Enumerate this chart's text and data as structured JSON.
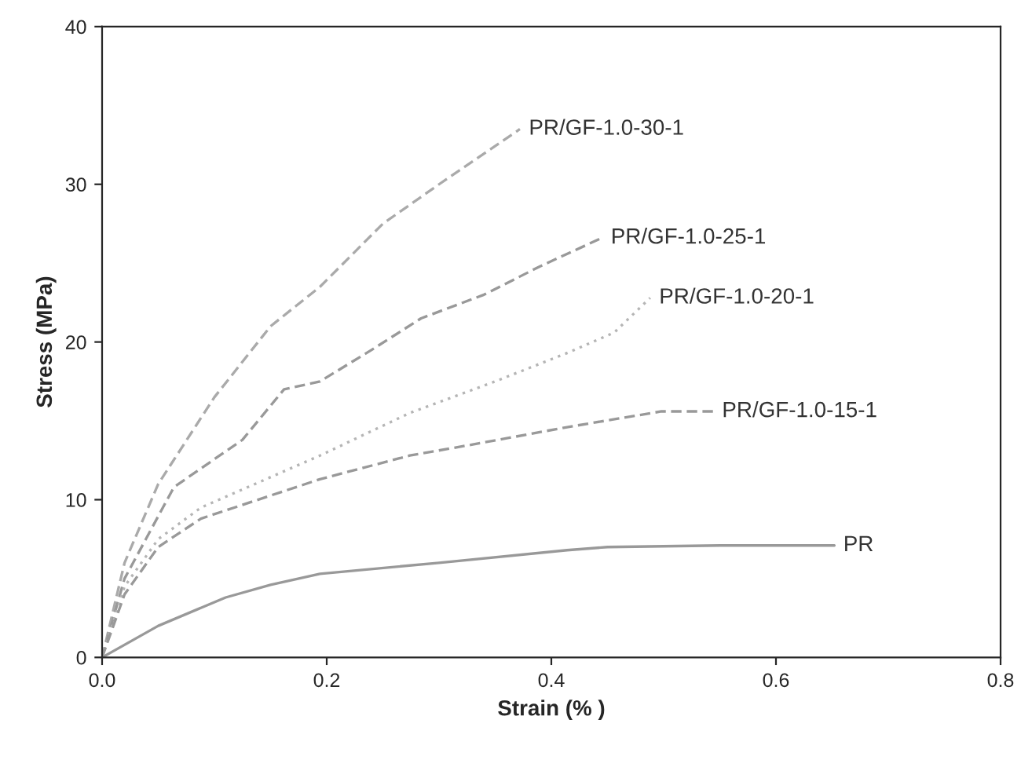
{
  "chart_data": {
    "type": "line",
    "xlabel": "Strain (% )",
    "ylabel": "Stress (MPa)",
    "xlim": [
      0,
      0.8
    ],
    "ylim": [
      0,
      40
    ],
    "xticks": [
      {
        "value": 0,
        "label": "0.0"
      },
      {
        "value": 0.2,
        "label": "0.2"
      },
      {
        "value": 0.4,
        "label": "0.4"
      },
      {
        "value": 0.6,
        "label": "0.6"
      },
      {
        "value": 0.8,
        "label": "0.8"
      }
    ],
    "yticks": [
      0,
      10,
      20,
      30,
      40
    ],
    "grid": false,
    "legend": false,
    "series": [
      {
        "name": "PR/GF-1.0-30-1",
        "color": "#aaaaaa",
        "line_style": "dashed",
        "x": [
          0,
          0.02,
          0.05,
          0.1,
          0.15,
          0.194,
          0.25,
          0.3,
          0.372
        ],
        "values": [
          0,
          6,
          11,
          16.5,
          21,
          23.5,
          27.5,
          30,
          33.5
        ]
      },
      {
        "name": "PR/GF-1.0-25-1",
        "color": "#999999",
        "line_style": "dashed",
        "x": [
          0,
          0.02,
          0.064,
          0.125,
          0.162,
          0.194,
          0.24,
          0.284,
          0.34,
          0.39,
          0.445
        ],
        "values": [
          0,
          5,
          10.8,
          13.8,
          17,
          17.5,
          19.5,
          21.5,
          23,
          24.8,
          26.6
        ]
      },
      {
        "name": "PR/GF-1.0-20-1",
        "color": "#b5b5b5",
        "line_style": "dotted",
        "x": [
          0,
          0.02,
          0.05,
          0.088,
          0.194,
          0.274,
          0.35,
          0.414,
          0.456,
          0.488
        ],
        "values": [
          0,
          4.5,
          7.5,
          9.5,
          12.8,
          15.5,
          17.5,
          19.3,
          20.6,
          22.8
        ]
      },
      {
        "name": "PR/GF-1.0-15-1",
        "color": "#999999",
        "line_style": "dashed",
        "x": [
          0,
          0.02,
          0.05,
          0.088,
          0.194,
          0.274,
          0.33,
          0.414,
          0.498,
          0.544
        ],
        "values": [
          0,
          4,
          7,
          8.8,
          11.3,
          12.8,
          13.5,
          14.6,
          15.6,
          15.6
        ]
      },
      {
        "name": "PR",
        "color": "#999999",
        "line_style": "solid",
        "x": [
          0,
          0.05,
          0.11,
          0.15,
          0.194,
          0.3,
          0.414,
          0.45,
          0.55,
          0.652
        ],
        "values": [
          0,
          2,
          3.8,
          4.6,
          5.3,
          6,
          6.8,
          7,
          7.1,
          7.1
        ]
      }
    ]
  }
}
